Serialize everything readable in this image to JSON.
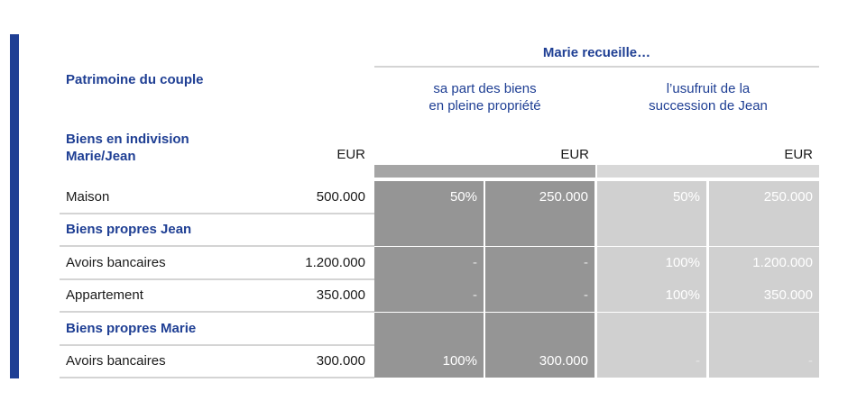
{
  "header": {
    "main": "Marie recueille…",
    "sub1_line1": "sa part des biens",
    "sub1_line2": "en pleine propriété",
    "sub2_line1": "l’usufruit de la",
    "sub2_line2": "succession de Jean"
  },
  "left": {
    "title": "Patrimoine du couple",
    "indiv_line1": "Biens en indivision",
    "indiv_line2": "Marie/Jean"
  },
  "currency": "EUR",
  "rows": [
    {
      "label": "Maison",
      "amount": "500.000",
      "c1": "50%",
      "c2": "250.000",
      "c3": "50%",
      "c4": "250.000",
      "section": false
    },
    {
      "label": "Biens propres Jean",
      "amount": "",
      "c1": "",
      "c2": "",
      "c3": "",
      "c4": "",
      "section": true
    },
    {
      "label": "Avoirs bancaires",
      "amount": "1.200.000",
      "c1": "-",
      "c2": "-",
      "c3": "100%",
      "c4": "1.200.000",
      "section": false
    },
    {
      "label": "Appartement",
      "amount": "350.000",
      "c1": "-",
      "c2": "-",
      "c3": "100%",
      "c4": "350.000",
      "section": false
    },
    {
      "label": "Biens propres Marie",
      "amount": "",
      "c1": "",
      "c2": "",
      "c3": "",
      "c4": "",
      "section": true
    },
    {
      "label": "Avoirs bancaires",
      "amount": "300.000",
      "c1": "100%",
      "c2": "300.000",
      "c3": "-",
      "c4": "-",
      "section": false
    }
  ],
  "colors": {
    "accent": "#1f3f94",
    "dark_cell": "#959595",
    "light_cell": "#d0d0d0"
  }
}
